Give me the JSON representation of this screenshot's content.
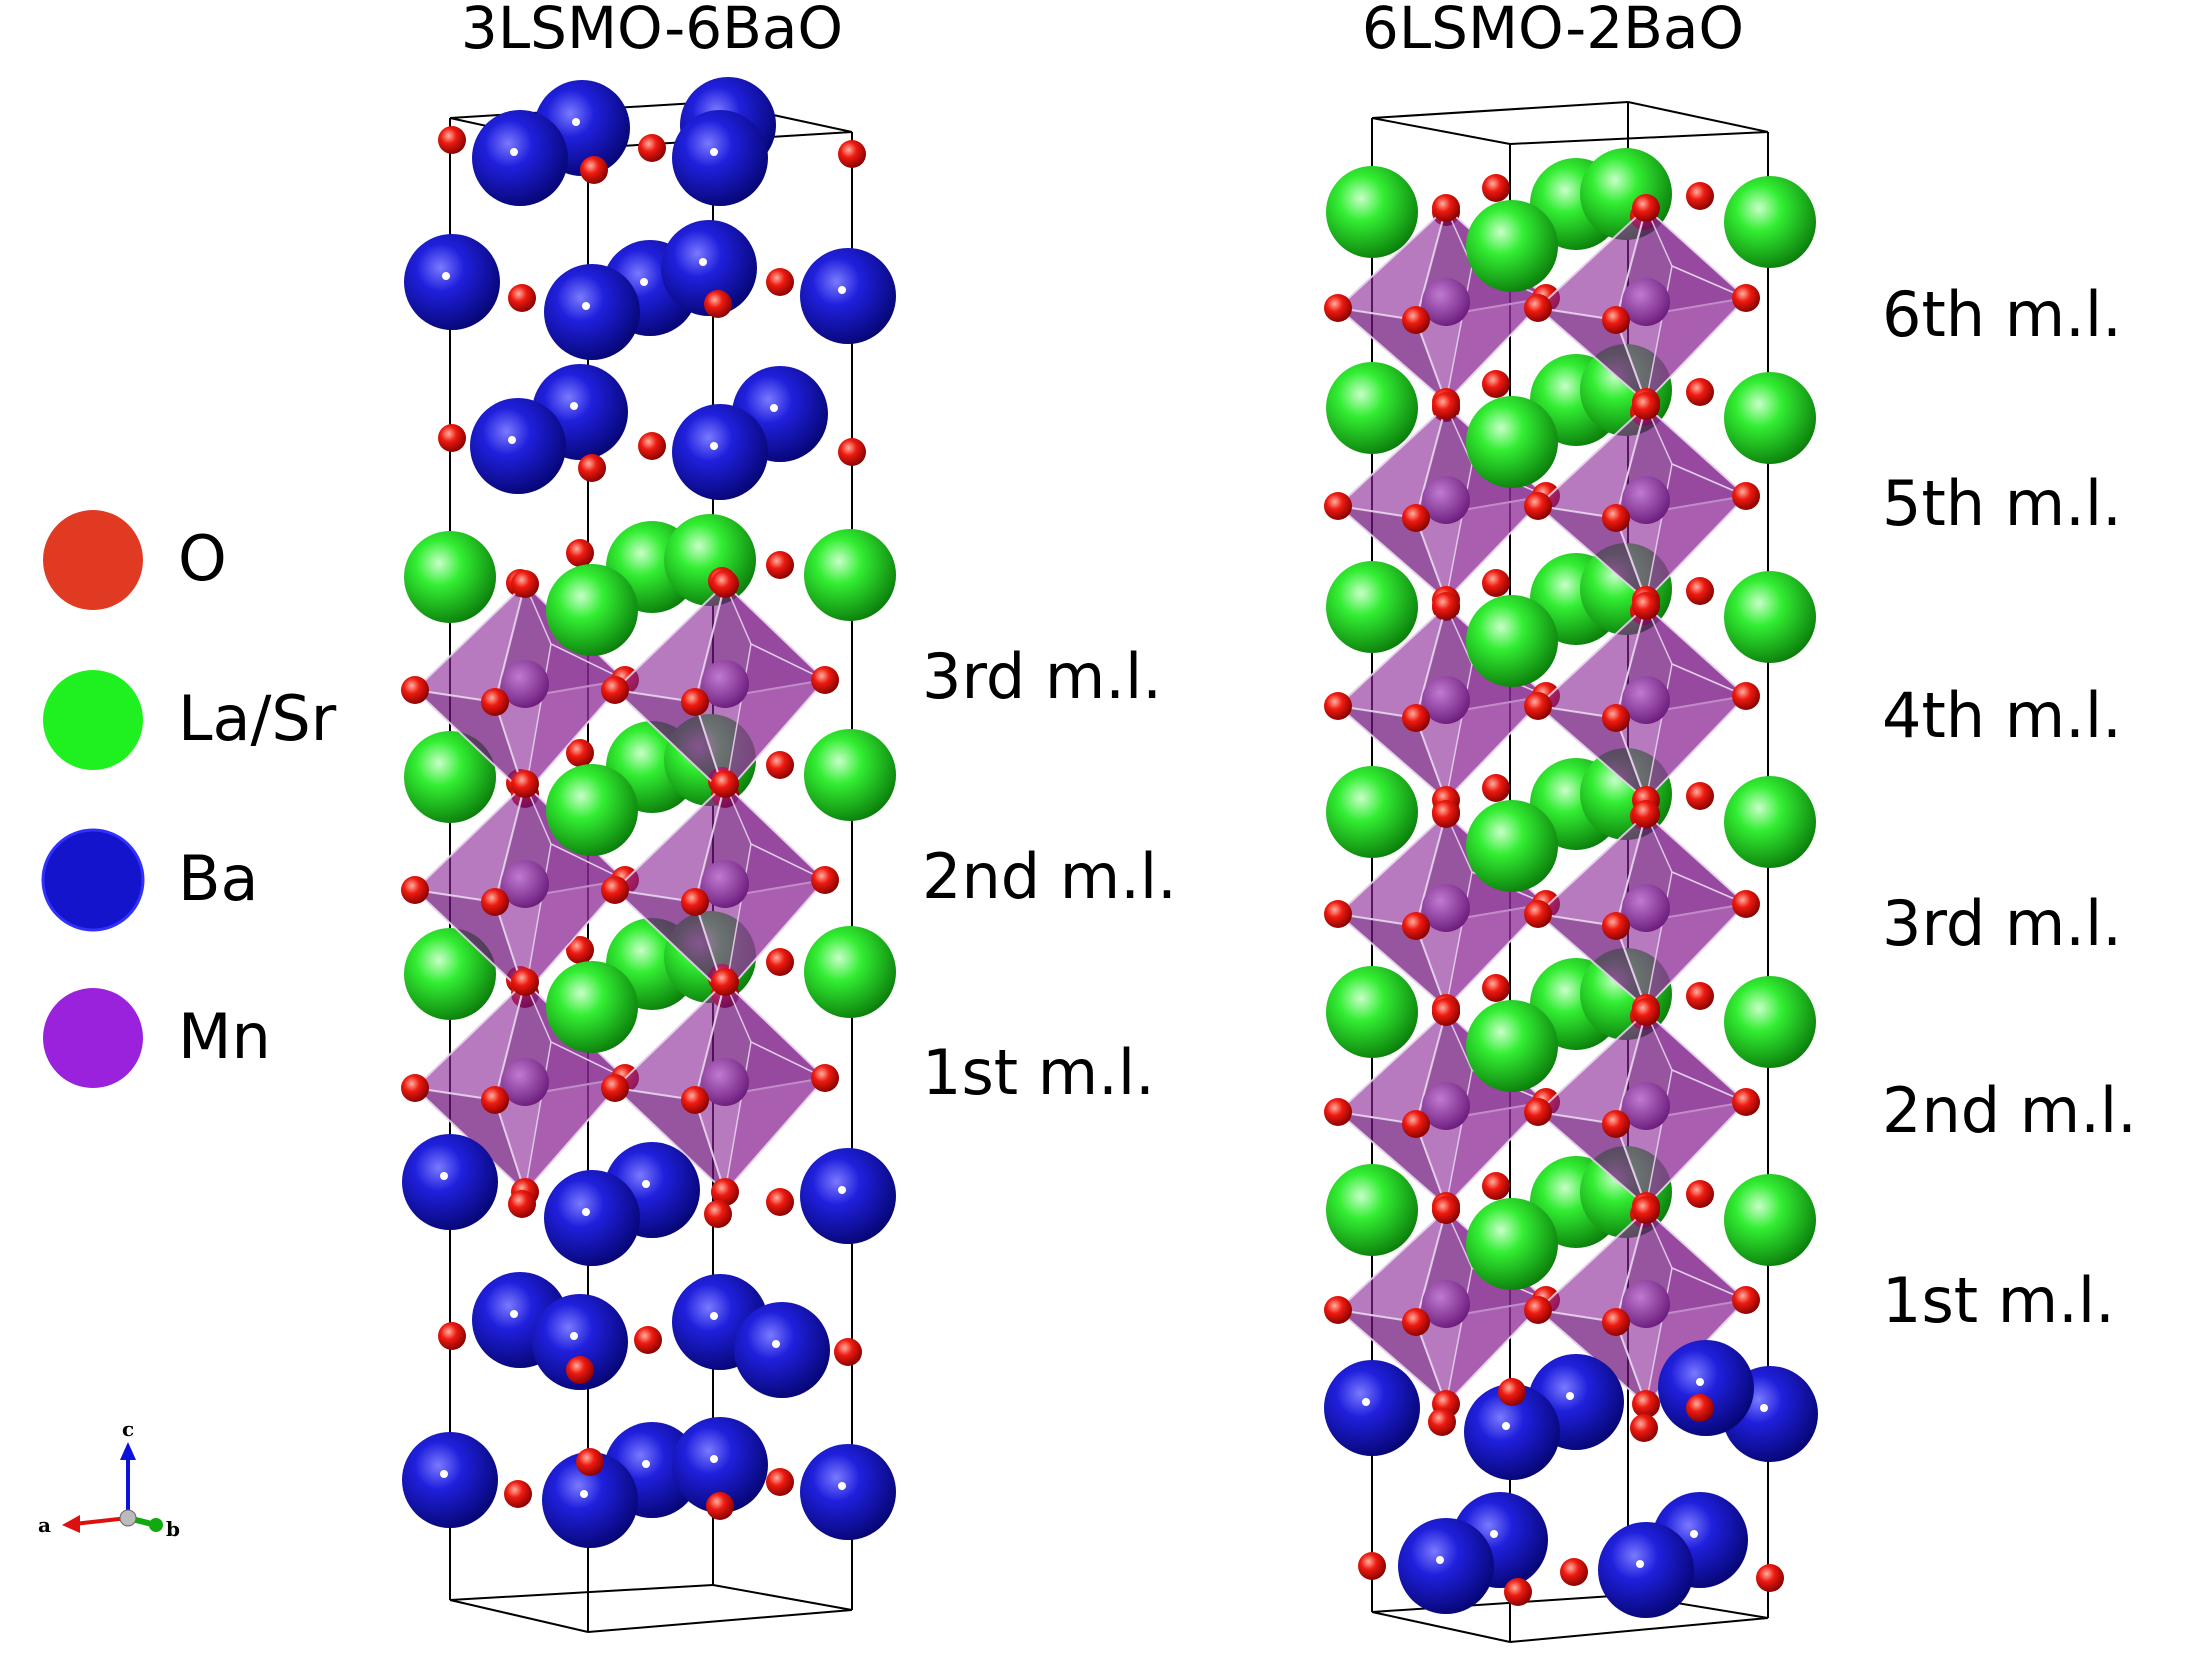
{
  "panels": [
    {
      "title": "3LSMO-6BaO",
      "layers": [
        "3rd m.l.",
        "2nd m.l.",
        "1st m.l."
      ]
    },
    {
      "title": "6LSMO-2BaO",
      "layers": [
        "6th m.l.",
        "5th m.l.",
        "4th m.l.",
        "3rd m.l.",
        "2nd m.l.",
        "1st m.l."
      ]
    }
  ],
  "legend": [
    {
      "label": "O",
      "color": "#e03a22"
    },
    {
      "label": "La/Sr",
      "color": "#1ff01f"
    },
    {
      "label": "Ba",
      "color": "#1414cc"
    },
    {
      "label": "Mn",
      "color": "#9a22dd"
    }
  ],
  "axes": {
    "a": "a",
    "b": "b",
    "c": "c"
  },
  "colors": {
    "oxygen": "#e01010",
    "lasr": "#22dd22",
    "ba": "#1010c8",
    "octahedron": "#8a2a9a"
  }
}
